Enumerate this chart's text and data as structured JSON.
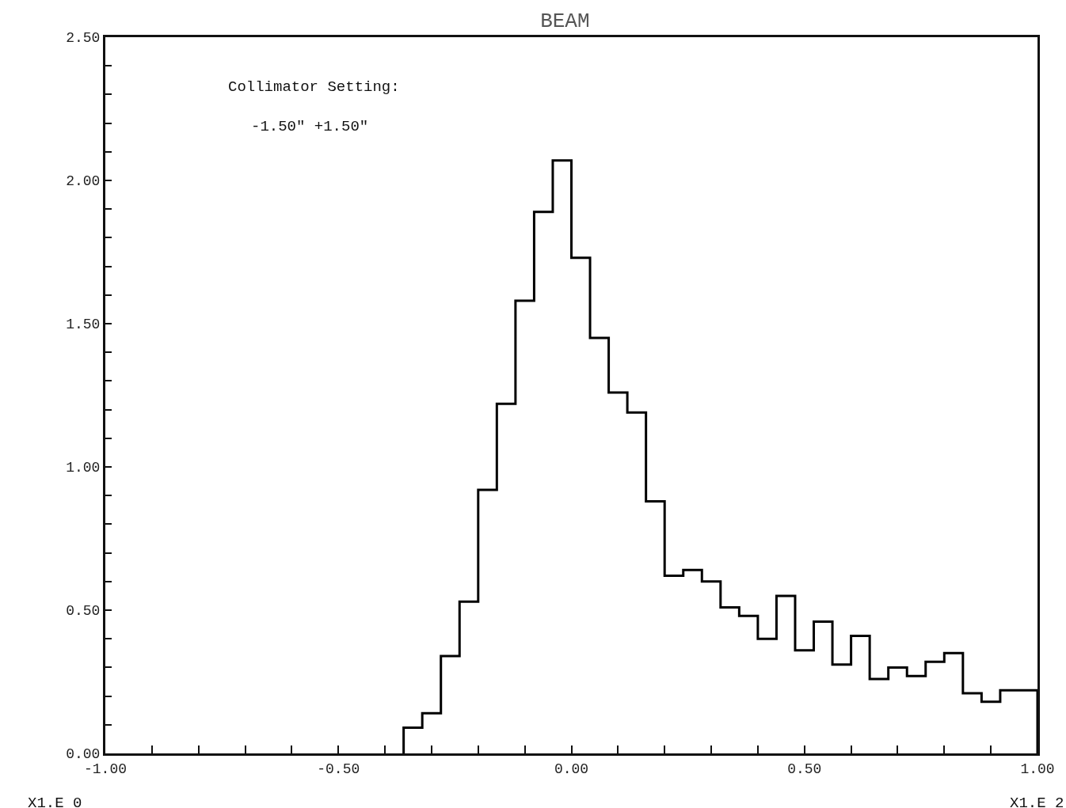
{
  "chart_data": {
    "type": "histogram",
    "title": "BEAM",
    "bins": [
      -0.36,
      -0.32,
      -0.28,
      -0.24,
      -0.2,
      -0.16,
      -0.12,
      -0.08,
      -0.04,
      0,
      0.04,
      0.08,
      0.12,
      0.16,
      0.2,
      0.24,
      0.28,
      0.32,
      0.36,
      0.4,
      0.44,
      0.48,
      0.52,
      0.56,
      0.6,
      0.64,
      0.68,
      0.72,
      0.76,
      0.8,
      0.84,
      0.88,
      0.92,
      0.96,
      1.0
    ],
    "values": [
      0.09,
      0.14,
      0.34,
      0.53,
      0.92,
      1.22,
      1.58,
      1.89,
      2.07,
      1.73,
      1.45,
      1.26,
      1.19,
      0.88,
      0.62,
      0.64,
      0.6,
      0.51,
      0.48,
      0.4,
      0.55,
      0.36,
      0.46,
      0.31,
      0.41,
      0.26,
      0.3,
      0.27,
      0.32,
      0.35,
      0.21,
      0.18,
      0.22,
      0.22
    ],
    "color": "#000000",
    "xlim": [
      -1.0,
      1.0
    ],
    "xticks": [
      {
        "value": -1.0,
        "label": "-1.00"
      },
      {
        "value": -0.9,
        "label": null
      },
      {
        "value": -0.8,
        "label": null
      },
      {
        "value": -0.7,
        "label": null
      },
      {
        "value": -0.6,
        "label": null
      },
      {
        "value": -0.5,
        "label": "-0.50"
      },
      {
        "value": -0.4,
        "label": null
      },
      {
        "value": -0.3,
        "label": null
      },
      {
        "value": -0.2,
        "label": null
      },
      {
        "value": -0.1,
        "label": null
      },
      {
        "value": 0,
        "label": "0.00"
      },
      {
        "value": 0.1,
        "label": null
      },
      {
        "value": 0.2,
        "label": null
      },
      {
        "value": 0.3,
        "label": null
      },
      {
        "value": 0.4,
        "label": null
      },
      {
        "value": 0.5,
        "label": "0.50"
      },
      {
        "value": 0.6,
        "label": null
      },
      {
        "value": 0.7,
        "label": null
      },
      {
        "value": 0.8,
        "label": null
      },
      {
        "value": 0.9,
        "label": null
      },
      {
        "value": 1.0,
        "label": "1.00"
      }
    ],
    "ylim": [
      0,
      2.5
    ],
    "yticks": [
      {
        "value": 0,
        "label": "0.00"
      },
      {
        "value": 0.1,
        "label": null
      },
      {
        "value": 0.2,
        "label": null
      },
      {
        "value": 0.3,
        "label": null
      },
      {
        "value": 0.4,
        "label": null
      },
      {
        "value": 0.5,
        "label": "0.50"
      },
      {
        "value": 0.6,
        "label": null
      },
      {
        "value": 0.7,
        "label": null
      },
      {
        "value": 0.8,
        "label": null
      },
      {
        "value": 0.9,
        "label": null
      },
      {
        "value": 1.0,
        "label": "1.00"
      },
      {
        "value": 1.1,
        "label": null
      },
      {
        "value": 1.2,
        "label": null
      },
      {
        "value": 1.3,
        "label": null
      },
      {
        "value": 1.4,
        "label": null
      },
      {
        "value": 1.5,
        "label": "1.50"
      },
      {
        "value": 1.6,
        "label": null
      },
      {
        "value": 1.7,
        "label": null
      },
      {
        "value": 1.8,
        "label": null
      },
      {
        "value": 1.9,
        "label": null
      },
      {
        "value": 2.0,
        "label": "2.00"
      },
      {
        "value": 2.1,
        "label": null
      },
      {
        "value": 2.2,
        "label": null
      },
      {
        "value": 2.3,
        "label": null
      },
      {
        "value": 2.4,
        "label": null
      },
      {
        "value": 2.5,
        "label": "2.50"
      }
    ],
    "grid": false,
    "annotations": [
      "Collimator Setting:",
      "-1.50\" +1.50\"",
      "X1.E 0",
      "X1.E 2"
    ]
  }
}
